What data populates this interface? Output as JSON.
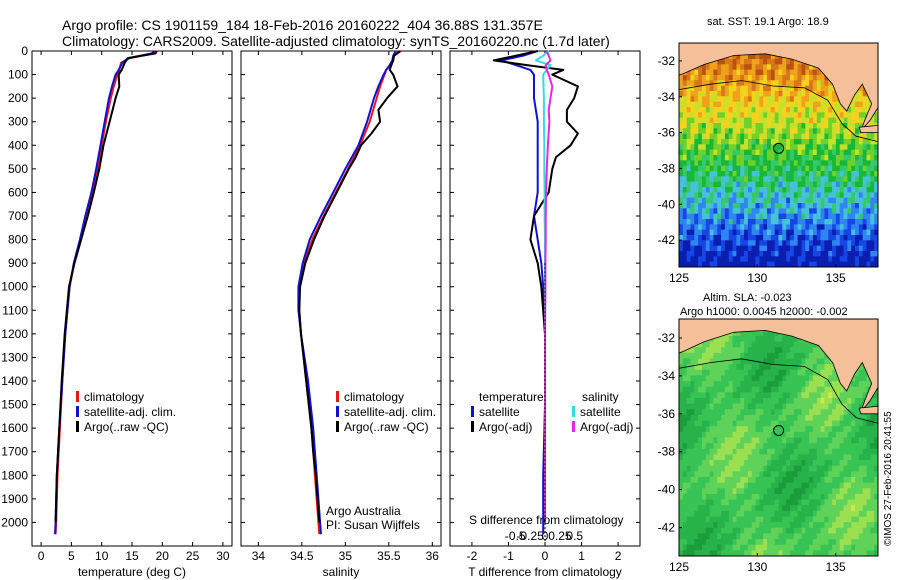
{
  "header": {
    "line1": "Argo profile: CS 1901159_184 18-Feb-2016 20160222_404 36.88S 131.357E",
    "line2": "Climatology: CARS2009. Satellite-adjusted climatology: synTS_20160220.nc (1.7d later)"
  },
  "colors": {
    "climatology": "#e8191c",
    "satellite": "#1010d0",
    "argo": "#000000",
    "satellite_sal": "#3ad9e0",
    "argo_sal": "#e22ae0",
    "land": "#f5bf9a"
  },
  "depth_axis": {
    "ylim": [
      0,
      2100
    ],
    "ticks": [
      0,
      100,
      200,
      300,
      400,
      500,
      600,
      700,
      800,
      900,
      1000,
      1100,
      1200,
      1300,
      1400,
      1500,
      1600,
      1700,
      1800,
      1900,
      2000
    ]
  },
  "chart_data": [
    {
      "type": "line",
      "panel": "temperature",
      "xlabel": "temperature (deg C)",
      "xlim": [
        -1.5,
        31.5
      ],
      "xticks": [
        0,
        5,
        10,
        15,
        20,
        25,
        30
      ],
      "legend": [
        "climatology",
        "satellite-adj. clim.",
        "Argo(..raw -QC)"
      ],
      "series": [
        {
          "name": "climatology",
          "color": "#e8191c",
          "depth": [
            0,
            10,
            30,
            50,
            80,
            100,
            150,
            200,
            300,
            400,
            500,
            600,
            700,
            800,
            900,
            1000,
            1200,
            1400,
            1600,
            1800,
            2000,
            2050
          ],
          "values": [
            19.2,
            18.6,
            14.6,
            13.2,
            12.9,
            12.6,
            12.0,
            11.5,
            10.7,
            10.0,
            9.3,
            8.5,
            7.6,
            6.6,
            5.5,
            4.7,
            4.0,
            3.5,
            3.1,
            2.7,
            2.5,
            2.4
          ]
        },
        {
          "name": "satellite-adj. clim.",
          "color": "#1010d0",
          "depth": [
            0,
            10,
            30,
            50,
            80,
            100,
            150,
            200,
            300,
            400,
            500,
            600,
            700,
            800,
            900,
            1000,
            1200,
            1400,
            1600,
            1800,
            2000,
            2050
          ],
          "values": [
            18.6,
            18.3,
            14.4,
            13.4,
            12.8,
            12.3,
            11.7,
            11.2,
            10.5,
            9.8,
            9.1,
            8.3,
            7.3,
            6.4,
            5.4,
            4.7,
            4.0,
            3.5,
            3.0,
            2.6,
            2.4,
            2.3
          ]
        },
        {
          "name": "Argo(..raw -QC)",
          "color": "#000000",
          "depth": [
            0,
            10,
            30,
            50,
            80,
            100,
            150,
            200,
            300,
            400,
            500,
            600,
            700,
            800,
            900,
            1000,
            1200,
            1400,
            1600,
            1800,
            2000
          ],
          "values": [
            19.0,
            18.9,
            14.3,
            13.8,
            13.3,
            12.8,
            12.9,
            12.3,
            11.3,
            10.3,
            9.6,
            8.7,
            7.7,
            6.6,
            5.5,
            4.6,
            3.9,
            3.4,
            3.0,
            2.6,
            2.4
          ]
        }
      ]
    },
    {
      "type": "line",
      "panel": "salinity",
      "xlabel": "salinity",
      "xlim": [
        33.8,
        36.1
      ],
      "xticks": [
        34,
        34.5,
        35,
        35.5,
        36
      ],
      "legend": [
        "climatology",
        "satellite-adj. clim.",
        "Argo(..raw -QC)"
      ],
      "annotation": [
        "Argo Australia",
        "PI: Susan Wijffels"
      ],
      "series": [
        {
          "name": "climatology",
          "color": "#e8191c",
          "depth": [
            0,
            20,
            40,
            60,
            80,
            100,
            150,
            200,
            300,
            400,
            500,
            600,
            700,
            800,
            900,
            1000,
            1100,
            1200,
            1300,
            1400,
            1500,
            1600,
            1700,
            1800,
            1900,
            2000,
            2050
          ],
          "values": [
            35.64,
            35.56,
            35.55,
            35.52,
            35.47,
            35.45,
            35.4,
            35.36,
            35.28,
            35.17,
            35.03,
            34.89,
            34.75,
            34.62,
            34.52,
            34.47,
            34.47,
            34.49,
            34.52,
            34.55,
            34.58,
            34.61,
            34.63,
            34.65,
            34.67,
            34.69,
            34.7
          ]
        },
        {
          "name": "satellite-adj. clim.",
          "color": "#1010d0",
          "depth": [
            0,
            20,
            40,
            60,
            80,
            100,
            150,
            200,
            300,
            400,
            500,
            600,
            700,
            800,
            900,
            1000,
            1100,
            1200,
            1300,
            1400,
            1500,
            1600,
            1700,
            1800,
            1900,
            2000,
            2050
          ],
          "values": [
            35.58,
            35.55,
            35.54,
            35.51,
            35.47,
            35.44,
            35.38,
            35.33,
            35.25,
            35.15,
            35.0,
            34.86,
            34.72,
            34.59,
            34.51,
            34.46,
            34.46,
            34.49,
            34.53,
            34.57,
            34.6,
            34.63,
            34.65,
            34.67,
            34.69,
            34.71,
            34.72
          ]
        },
        {
          "name": "Argo(..raw -QC)",
          "color": "#000000",
          "depth": [
            0,
            20,
            40,
            60,
            80,
            100,
            150,
            200,
            250,
            300,
            350,
            400,
            450,
            500,
            600,
            700,
            800,
            900,
            1000,
            1100,
            1200,
            1300,
            1400,
            1500,
            1600,
            1700,
            1800,
            1900,
            2000
          ],
          "values": [
            35.63,
            35.56,
            35.55,
            35.53,
            35.51,
            35.55,
            35.6,
            35.48,
            35.38,
            35.4,
            35.3,
            35.18,
            35.12,
            35.04,
            34.9,
            34.76,
            34.64,
            34.54,
            34.48,
            34.47,
            34.49,
            34.52,
            34.55,
            34.58,
            34.61,
            34.63,
            34.66,
            34.68,
            34.7
          ]
        }
      ]
    },
    {
      "type": "line",
      "panel": "difference",
      "xlabel": "T difference from climatology",
      "xlim": [
        -2.6,
        2.6
      ],
      "xticks": [
        -2,
        -1,
        0,
        1,
        2
      ],
      "top_label": "S difference from climatology",
      "top_ticks": [
        -0.5,
        -0.25,
        0,
        0.25,
        0.5
      ],
      "legend_titles": [
        "temperature",
        "salinity"
      ],
      "legend": [
        "satellite",
        "Argo(-adj)",
        "satellite",
        "Argo(-adj)"
      ],
      "series": [
        {
          "name": "temperature satellite",
          "color": "#1010d0",
          "depth": [
            0,
            20,
            40,
            60,
            80,
            100,
            150,
            200,
            300,
            400,
            500,
            600,
            700,
            800,
            900,
            1000,
            1200,
            1500,
            1800,
            2050
          ],
          "values": [
            -0.2,
            -0.6,
            -1.2,
            -0.8,
            -0.4,
            -0.3,
            -0.3,
            -0.3,
            -0.2,
            -0.2,
            -0.2,
            -0.2,
            -0.3,
            -0.2,
            -0.1,
            -0.05,
            0,
            0,
            -0.05,
            -0.05
          ]
        },
        {
          "name": "temperature Argo(-adj)",
          "color": "#000000",
          "depth": [
            0,
            20,
            40,
            60,
            80,
            100,
            150,
            200,
            250,
            300,
            350,
            400,
            450,
            500,
            600,
            700,
            800,
            900,
            1000,
            1200,
            1500,
            1800,
            2000
          ],
          "values": [
            -0.2,
            -0.8,
            -1.4,
            -0.5,
            0.5,
            0.2,
            0.9,
            0.8,
            0.6,
            0.6,
            0.9,
            0.7,
            0.3,
            0.2,
            0.1,
            -0.3,
            -0.4,
            -0.2,
            -0.1,
            0,
            0,
            0,
            0
          ]
        },
        {
          "name": "salinity satellite",
          "color": "#3ad9e0",
          "depth": [
            0,
            20,
            40,
            60,
            80,
            100,
            150,
            200,
            300,
            400,
            500,
            600,
            700,
            800,
            1000,
            1200,
            1500,
            1800,
            2000
          ],
          "values": [
            0.1,
            -0.05,
            -0.25,
            0.15,
            0.05,
            -0.05,
            -0.04,
            -0.03,
            -0.03,
            -0.02,
            -0.02,
            -0.01,
            -0.01,
            0,
            0,
            0,
            0,
            0,
            0
          ]
        },
        {
          "name": "salinity Argo(-adj)",
          "color": "#e22ae0",
          "depth": [
            0,
            20,
            40,
            60,
            80,
            100,
            150,
            200,
            250,
            300,
            400,
            500,
            600,
            700,
            800,
            900,
            1000,
            1200,
            1500,
            1800,
            2000
          ],
          "values": [
            0.05,
            0.1,
            0.15,
            0.02,
            0.05,
            0.1,
            0.2,
            0.15,
            0.1,
            0.12,
            0.08,
            0.05,
            0.03,
            0.02,
            0.02,
            0.01,
            0.01,
            0,
            0,
            0,
            0
          ]
        }
      ]
    },
    {
      "type": "heatmap",
      "panel": "sst-map",
      "title": "sat. SST: 19.1  Argo: 18.9",
      "xticks": [
        125,
        130,
        135
      ],
      "yticks": [
        -32,
        -34,
        -36,
        -38,
        -40,
        -42
      ],
      "xlim": [
        125,
        137.7
      ],
      "ylim": [
        -43.5,
        -31
      ]
    },
    {
      "type": "heatmap",
      "panel": "sla-map",
      "title_lines": [
        "Altim. SLA: -0.023",
        "Argo h1000: 0.0045 h2000: -0.002"
      ],
      "xticks": [
        125,
        130,
        135
      ],
      "yticks": [
        -32,
        -34,
        -36,
        -38,
        -40,
        -42
      ],
      "xlim": [
        125,
        137.7
      ],
      "ylim": [
        -43.5,
        -31
      ]
    }
  ],
  "footer": {
    "stamp": "©IMOS 27-Feb-2016 20:41:55"
  }
}
